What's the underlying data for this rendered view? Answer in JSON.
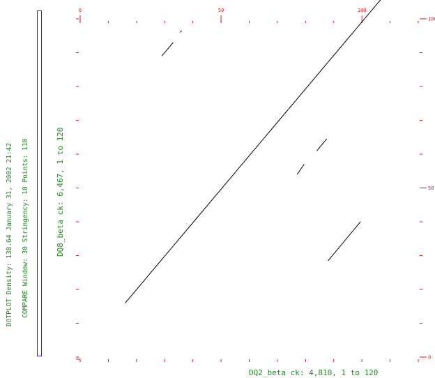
{
  "header": {
    "density_line": "DOTPLOT Density: 138.64  January 31, 2002 21:42",
    "compare_line": "COMPARE  Window: 30  Stringency: 10  Points: 110"
  },
  "colors": {
    "axis": "#e81010",
    "text": "#1e8c1e",
    "legend_border": "#2323d8",
    "dots": "#000000"
  },
  "chart_data": {
    "type": "scatter",
    "title": "",
    "xlabel": "DQ2_beta ck: 4,810, 1 to 120",
    "ylabel": "DQ8_beta ck: 6,467, 1 to 120",
    "xlim": [
      0,
      120
    ],
    "ylim": [
      0,
      100
    ],
    "x_ticks": [
      {
        "value": 0,
        "label": "0"
      },
      {
        "value": 50,
        "label": "50"
      },
      {
        "value": 100,
        "label": "100"
      }
    ],
    "y_ticks": [
      {
        "value": 0,
        "label": "0"
      },
      {
        "value": 50,
        "label": "50"
      },
      {
        "value": 100,
        "label": "100"
      }
    ],
    "segments": [
      {
        "x": [
          16,
          107
        ],
        "y": [
          16,
          106
        ]
      },
      {
        "x": [
          29,
          33
        ],
        "y": [
          89,
          93
        ]
      },
      {
        "x": [
          35.5,
          36
        ],
        "y": [
          96,
          96.5
        ]
      },
      {
        "x": [
          77,
          79.5
        ],
        "y": [
          54,
          57
        ]
      },
      {
        "x": [
          84,
          87.5
        ],
        "y": [
          61,
          64.5
        ]
      },
      {
        "x": [
          88,
          99.5
        ],
        "y": [
          28.5,
          40
        ]
      }
    ]
  }
}
